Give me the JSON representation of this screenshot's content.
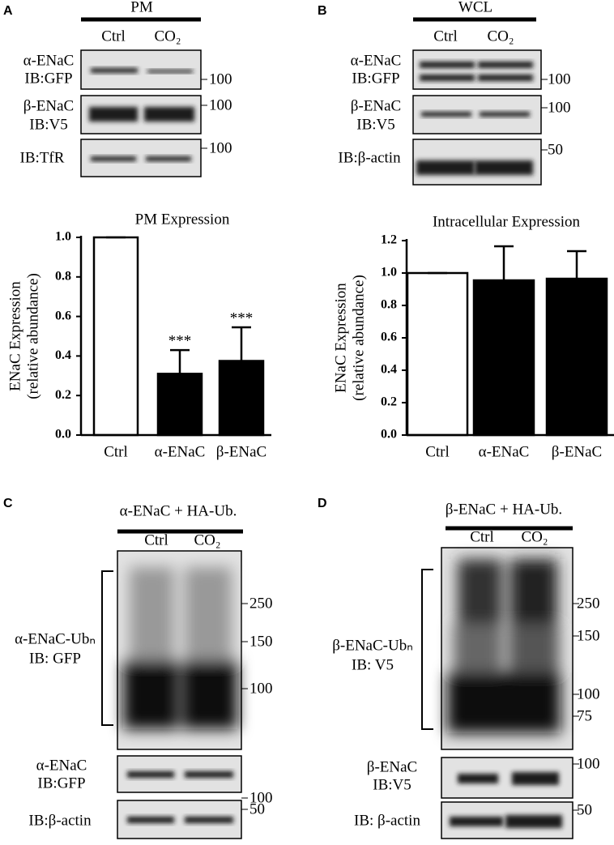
{
  "panels": {
    "A": {
      "letter": "A",
      "header": "PM",
      "lanes": [
        "Ctrl",
        "CO₂"
      ],
      "rows": [
        {
          "label": [
            "α-ENaC",
            "IB:GFP"
          ],
          "marker": "100"
        },
        {
          "label": [
            "β-ENaC",
            "IB:V5"
          ],
          "marker": "100"
        },
        {
          "label": [
            "IB:TfR"
          ],
          "marker": "100"
        }
      ]
    },
    "B": {
      "letter": "B",
      "header": "WCL",
      "lanes": [
        "Ctrl",
        "CO₂"
      ],
      "rows": [
        {
          "label": [
            "α-ENaC",
            "IB:GFP"
          ],
          "marker": "100"
        },
        {
          "label": [
            "β-ENaC",
            "IB:V5"
          ],
          "marker": "100"
        },
        {
          "label": [
            "IB:β-actin"
          ],
          "marker": "50"
        }
      ]
    },
    "C": {
      "letter": "C",
      "header": "α-ENaC + HA-Ub.",
      "lanes": [
        "Ctrl",
        "CO₂"
      ],
      "main": {
        "label": [
          "α-ENaC-Ubₙ",
          "IB: GFP"
        ],
        "markers": [
          "250",
          "150",
          "100"
        ]
      },
      "rows": [
        {
          "label": [
            "α-ENaC",
            "IB:GFP"
          ],
          "marker": "100"
        },
        {
          "label": [
            "IB:β-actin"
          ],
          "marker": "50"
        }
      ]
    },
    "D": {
      "letter": "D",
      "header": "β-ENaC + HA-Ub.",
      "lanes": [
        "Ctrl",
        "CO₂"
      ],
      "main": {
        "label": [
          "β-ENaC-Ubₙ",
          "IB: V5"
        ],
        "markers": [
          "250",
          "150",
          "100",
          "75"
        ]
      },
      "rows": [
        {
          "label": [
            "β-ENaC",
            "IB:V5"
          ],
          "marker": "100"
        },
        {
          "label": [
            "IB: β-actin"
          ],
          "marker": "50"
        }
      ]
    }
  },
  "chart_data": [
    {
      "type": "bar",
      "title": "PM Expression",
      "y_label": [
        "ENaC Expression",
        "(relative abundance)"
      ],
      "categories": [
        "Ctrl",
        "α-ENaC",
        "β-ENaC"
      ],
      "values": [
        1.0,
        0.31,
        0.375
      ],
      "errors": [
        0,
        0.12,
        0.17
      ],
      "annotations": [
        null,
        "***",
        "***"
      ],
      "colors": [
        "#ffffff",
        "#000000",
        "#000000"
      ],
      "ylim": [
        0,
        1.0
      ],
      "yticks": [
        {
          "value": 0,
          "label": "0.0"
        },
        {
          "value": 0.2,
          "label": "0.2"
        },
        {
          "value": 0.4,
          "label": "0.4"
        },
        {
          "value": 0.6,
          "label": "0.6"
        },
        {
          "value": 0.8,
          "label": "0.8"
        },
        {
          "value": 1,
          "label": "1.0"
        }
      ]
    },
    {
      "type": "bar",
      "title": "Intracellular Expression",
      "y_label": [
        "ENaC Expression",
        "(relative abundance)"
      ],
      "categories": [
        "Ctrl",
        "α-ENaC",
        "β-ENaC"
      ],
      "values": [
        1.0,
        0.955,
        0.965
      ],
      "errors": [
        0,
        0.21,
        0.17
      ],
      "colors": [
        "#ffffff",
        "#000000",
        "#000000"
      ],
      "ylim": [
        0,
        1.2
      ],
      "yticks": [
        {
          "value": 0,
          "label": "0.0"
        },
        {
          "value": 0.2,
          "label": "0.2"
        },
        {
          "value": 0.4,
          "label": "0.4"
        },
        {
          "value": 0.6,
          "label": "0.6"
        },
        {
          "value": 0.8,
          "label": "0.8"
        },
        {
          "value": 1,
          "label": "1.0"
        },
        {
          "value": 1.2,
          "label": "1.2"
        }
      ]
    }
  ]
}
